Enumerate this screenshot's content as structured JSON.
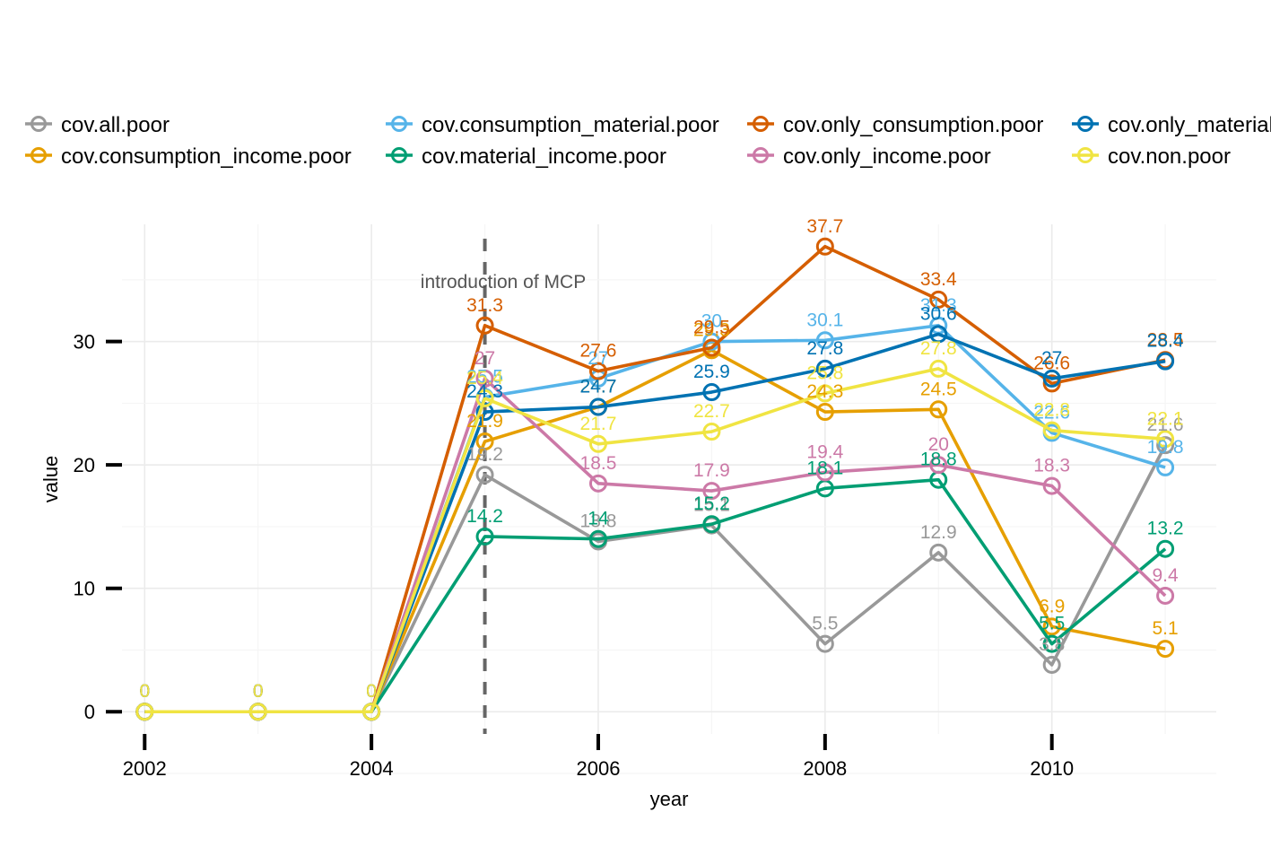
{
  "chart_data": {
    "type": "line",
    "xlabel": "year",
    "ylabel": "value",
    "x": [
      2002,
      2003,
      2004,
      2005,
      2006,
      2007,
      2008,
      2009,
      2010,
      2011
    ],
    "x_ticks": [
      "2002",
      "2004",
      "2006",
      "2008",
      "2010"
    ],
    "y_ticks": [
      "0",
      "10",
      "20",
      "30"
    ],
    "xlim": [
      2001.8,
      2011.45
    ],
    "ylim": [
      -1.8,
      39.5
    ],
    "grid": true,
    "legend_position": "top",
    "annotation": {
      "x": 2005,
      "label": "introduction of MCP",
      "style": "dashed vertical line"
    },
    "series": [
      {
        "name": "cov.all.poor",
        "color": "#999999",
        "values": [
          0,
          0,
          0,
          19.2,
          13.8,
          15.1,
          5.5,
          12.9,
          3.8,
          21.6
        ],
        "labels": [
          "0",
          "0",
          "0",
          "19.2",
          "13.8",
          "15.1",
          "5.5",
          "12.9",
          "3.8",
          "21.6"
        ]
      },
      {
        "name": "cov.consumption_income.poor",
        "color": "#E69F00",
        "values": [
          0,
          0,
          0,
          21.9,
          24.7,
          29.3,
          24.3,
          24.5,
          6.9,
          5.1
        ],
        "labels": [
          "0",
          "0",
          "0",
          "21.9",
          "24.7",
          "29.3",
          "24.3",
          "24.5",
          "6.9",
          "5.1"
        ]
      },
      {
        "name": "cov.consumption_material.poor",
        "color": "#56B4E9",
        "values": [
          0,
          0,
          0,
          25.5,
          27,
          30,
          30.1,
          31.3,
          22.6,
          19.8
        ],
        "labels": [
          "0",
          "0",
          "0",
          "25.5",
          "27",
          "30",
          "30.1",
          "31.3",
          "22.6",
          "19.8"
        ]
      },
      {
        "name": "cov.material_income.poor",
        "color": "#009E73",
        "values": [
          0,
          0,
          0,
          14.2,
          14,
          15.2,
          18.1,
          18.8,
          5.5,
          13.2
        ],
        "labels": [
          "0",
          "0",
          "0",
          "14.2",
          "14",
          "15.2",
          "18.1",
          "18.8",
          "5.5",
          "13.2"
        ]
      },
      {
        "name": "cov.only_consumption.poor",
        "color": "#D55E00",
        "values": [
          0,
          0,
          0,
          31.3,
          27.6,
          29.5,
          37.7,
          33.4,
          26.6,
          28.5
        ],
        "labels": [
          "0",
          "0",
          "0",
          "31.3",
          "27.6",
          "29.5",
          "37.7",
          "33.4",
          "26.6",
          "28.5"
        ]
      },
      {
        "name": "cov.only_income.poor",
        "color": "#CC79A7",
        "values": [
          0,
          0,
          0,
          27,
          18.5,
          17.9,
          19.4,
          20,
          18.3,
          9.4
        ],
        "labels": [
          "0",
          "0",
          "0",
          "27",
          "18.5",
          "17.9",
          "19.4",
          "20",
          "18.3",
          "9.4"
        ]
      },
      {
        "name": "cov.only_material.poor",
        "color": "#0072B2",
        "values": [
          0,
          0,
          0,
          24.3,
          24.7,
          25.9,
          27.8,
          30.6,
          27,
          28.4
        ],
        "labels": [
          "0",
          "0",
          "0",
          "24.3",
          "24.7",
          "25.9",
          "27.8",
          "30.6",
          "27",
          "28.4"
        ]
      },
      {
        "name": "cov.non.poor",
        "color": "#F0E442",
        "values": [
          0,
          0,
          0,
          25.4,
          21.7,
          22.7,
          25.8,
          27.8,
          22.8,
          22.1
        ],
        "labels": [
          "0",
          "0",
          "0",
          "25.4",
          "21.7",
          "22.7",
          "25.8",
          "27.8",
          "22.8",
          "22.1"
        ]
      }
    ]
  }
}
